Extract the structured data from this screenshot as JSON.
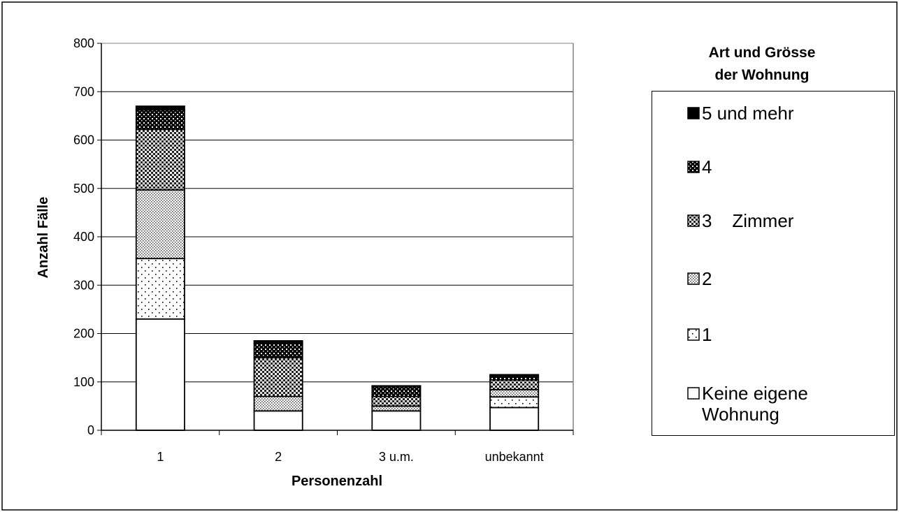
{
  "chart_data": {
    "type": "bar",
    "stacked": true,
    "categories": [
      "1",
      "2",
      "3 u.m.",
      "unbekannt"
    ],
    "xlabel": "Personenzahl",
    "ylabel": "Anzahl Fälle",
    "ylim": [
      0,
      800
    ],
    "yticks": [
      0,
      100,
      200,
      300,
      400,
      500,
      600,
      700,
      800
    ],
    "grid": true,
    "legend_title": "Art und Grösse der Wohnung",
    "legend_title_lines": [
      "Art und Grösse",
      "der Wohnung"
    ],
    "legend_position": "right",
    "series": [
      {
        "name": "Keine eigene Wohnung",
        "label_lines": [
          "Keine eigene",
          "Wohnung"
        ],
        "pattern": "white",
        "values": [
          230,
          40,
          40,
          47
        ]
      },
      {
        "name": "1",
        "label_lines": [
          "1"
        ],
        "pattern": "sparse-dots",
        "values": [
          125,
          0,
          0,
          22
        ]
      },
      {
        "name": "2",
        "label_lines": [
          "2"
        ],
        "pattern": "dense-dots",
        "values": [
          142,
          30,
          10,
          15
        ]
      },
      {
        "name": "3 Zimmer",
        "label_lines": [
          "3    Zimmer"
        ],
        "pattern": "checker",
        "values": [
          125,
          80,
          20,
          20
        ]
      },
      {
        "name": "4",
        "label_lines": [
          "4"
        ],
        "pattern": "dark-dots",
        "values": [
          40,
          30,
          20,
          8
        ]
      },
      {
        "name": "5 und mehr",
        "label_lines": [
          "5 und mehr"
        ],
        "pattern": "solid-black",
        "values": [
          8,
          5,
          2,
          3
        ]
      }
    ]
  }
}
